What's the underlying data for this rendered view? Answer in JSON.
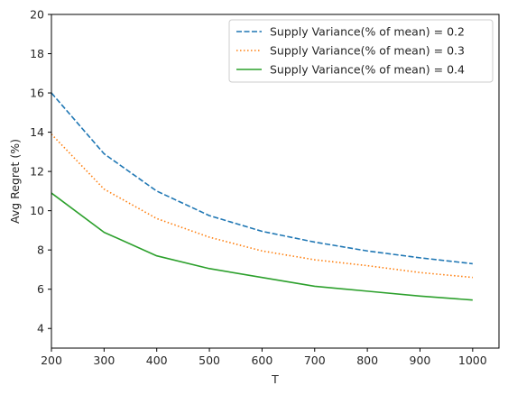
{
  "chart_data": {
    "type": "line",
    "title": "",
    "xlabel": "T",
    "ylabel": "Avg Regret (%)",
    "x": [
      200,
      300,
      400,
      500,
      600,
      700,
      800,
      900,
      1000
    ],
    "xlim": [
      200,
      1050
    ],
    "ylim": [
      3,
      20
    ],
    "xticks": [
      "200",
      "300",
      "400",
      "500",
      "600",
      "700",
      "800",
      "900",
      "1000"
    ],
    "yticks": [
      "4",
      "6",
      "8",
      "10",
      "12",
      "14",
      "16",
      "18",
      "20"
    ],
    "grid": false,
    "legend_position": "top-right",
    "series": [
      {
        "name": "Supply Variance(% of mean) = 0.2",
        "color": "#1f77b4",
        "style": "dashed",
        "values": [
          16.0,
          12.9,
          11.0,
          9.75,
          8.95,
          8.4,
          7.95,
          7.6,
          7.3
        ]
      },
      {
        "name": "Supply Variance(% of mean) = 0.3",
        "color": "#ff7f0e",
        "style": "dotted",
        "values": [
          13.9,
          11.1,
          9.6,
          8.65,
          7.95,
          7.5,
          7.2,
          6.85,
          6.6
        ]
      },
      {
        "name": "Supply Variance(% of mean) = 0.4",
        "color": "#2ca02c",
        "style": "solid",
        "values": [
          10.9,
          8.9,
          7.7,
          7.05,
          6.6,
          6.15,
          5.9,
          5.65,
          5.45
        ]
      }
    ]
  }
}
